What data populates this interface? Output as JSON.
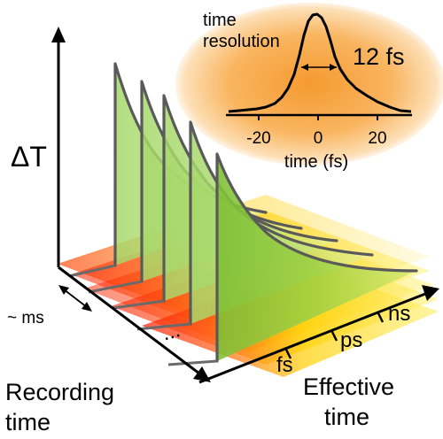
{
  "labels": {
    "y_axis": "ΔT",
    "recording_time_line1": "Recording",
    "recording_time_line2": "time",
    "effective_time_line1": "Effective",
    "effective_time_line2": "time",
    "tick_fs": "fs",
    "tick_ps": "ps",
    "tick_ns": "ns",
    "spacing": "~ ms",
    "ellipsis": "..."
  },
  "inset": {
    "title_line1": "time",
    "title_line2": "resolution",
    "fwhm_label": "12 fs",
    "x_axis_label": "time (fs)",
    "x_ticks": [
      "-20",
      "0",
      "20"
    ]
  },
  "colors": {
    "inset_glow": "#f7941d",
    "trace_fill": "#8cc63f",
    "floor_hot": "#ff0000",
    "floor_warm": "#ffd400"
  }
}
